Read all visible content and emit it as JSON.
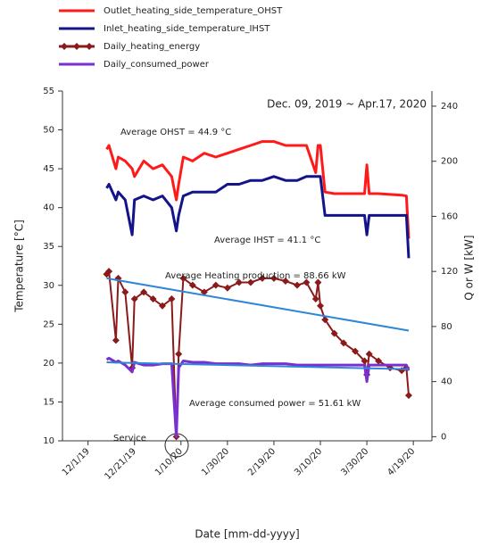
{
  "chart_data": {
    "type": "line",
    "x_label": "Date [mm-dd-yyyy]",
    "y_label": "Temperature [°C]",
    "y2_label": "Q or W [kW]",
    "annotations": [
      "Dec. 09, 2019 ~ Apr.17, 2020",
      "Average OHST = 44.9 °C",
      "Average IHST = 41.1 °C",
      "Average Heating production = 88.66 kW",
      "Average consumed power = 51.61 kW",
      "Service"
    ],
    "x": [
      "12/9/19",
      "12/10/19",
      "12/13/19",
      "12/14/19",
      "12/17/19",
      "12/20/19",
      "12/21/19",
      "12/25/19",
      "12/29/19",
      "1/2/20",
      "1/6/20",
      "1/8/20",
      "1/9/20",
      "1/11/20",
      "1/15/20",
      "1/20/20",
      "1/25/20",
      "1/30/20",
      "2/4/20",
      "2/9/20",
      "2/14/20",
      "2/19/20",
      "2/24/20",
      "2/29/20",
      "3/4/20",
      "3/8/20",
      "3/9/20",
      "3/10/20",
      "3/12/20",
      "3/16/20",
      "3/20/20",
      "3/25/20",
      "3/29/20",
      "3/30/20",
      "3/31/20",
      "4/4/20",
      "4/9/20",
      "4/14/20",
      "4/16/20",
      "4/17/20"
    ],
    "xlim": [
      "11/20/19",
      "4/27/20"
    ],
    "xticks": [
      "12/1/19",
      "12/21/19",
      "1/10/20",
      "1/30/20",
      "2/19/20",
      "3/10/20",
      "3/30/20",
      "4/19/20"
    ],
    "ylim": [
      10,
      55
    ],
    "yticks": [
      10,
      15,
      20,
      25,
      30,
      35,
      40,
      45,
      50,
      55
    ],
    "y2lim": [
      -3,
      251
    ],
    "y2ticks": [
      0,
      40,
      80,
      120,
      160,
      200,
      240
    ],
    "legend": "top",
    "series": [
      {
        "name": "Outlet_heating_side_temperature_OHST",
        "color": "#ff1a1a",
        "axis": "y",
        "values": [
          47.5,
          48,
          45,
          46.5,
          46,
          45,
          44,
          46,
          45,
          45.5,
          44,
          41,
          43,
          46.5,
          46,
          47,
          46.5,
          47,
          47.5,
          48,
          48.5,
          48.5,
          48,
          48,
          48,
          44.5,
          48,
          48,
          42,
          41.8,
          41.8,
          41.8,
          41.8,
          45.5,
          41.8,
          41.8,
          41.7,
          41.6,
          41.5,
          36
        ]
      },
      {
        "name": "Inlet_heating_side_temperature_IHST",
        "color": "#14148a",
        "axis": "y",
        "values": [
          42.5,
          43,
          41,
          42,
          41,
          36.5,
          41,
          41.5,
          41,
          41.5,
          40,
          37,
          39,
          41.5,
          42,
          42,
          42,
          43,
          43,
          43.5,
          43.5,
          44,
          43.5,
          43.5,
          44,
          44,
          44,
          44,
          39,
          39,
          39,
          39,
          39,
          36.5,
          39,
          39,
          39,
          39,
          39,
          33.5
        ]
      },
      {
        "name": "Daily_heating_energy",
        "color": "#8b1a1a",
        "axis": "y2",
        "marker": "diamond",
        "values": [
          118,
          120,
          70,
          115,
          105,
          50,
          100,
          105,
          100,
          95,
          100,
          0,
          60,
          115,
          110,
          105,
          110,
          108,
          112,
          112,
          115,
          115,
          113,
          110,
          112,
          100,
          112,
          95,
          85,
          75,
          68,
          62,
          55,
          45,
          60,
          55,
          50,
          48,
          50,
          30
        ]
      },
      {
        "name": "Daily_consumed_power",
        "color": "#7a2fd0",
        "axis": "y2",
        "values": [
          56,
          57,
          54,
          55,
          52,
          47,
          54,
          52,
          52,
          53,
          53,
          0,
          50,
          55,
          54,
          54,
          53,
          53,
          53,
          52,
          53,
          53,
          53,
          52,
          52,
          52,
          52,
          52,
          52,
          52,
          52,
          52,
          52,
          40,
          52,
          52,
          52,
          52,
          52,
          48
        ]
      }
    ],
    "trendlines": [
      {
        "color": "#2f86d8",
        "axis": "y2",
        "x": [
          "12/9/19",
          "4/17/20"
        ],
        "values": [
          115,
          77
        ]
      },
      {
        "color": "#2f86d8",
        "axis": "y2",
        "x": [
          "12/9/19",
          "4/17/20"
        ],
        "values": [
          54,
          49
        ]
      }
    ]
  }
}
